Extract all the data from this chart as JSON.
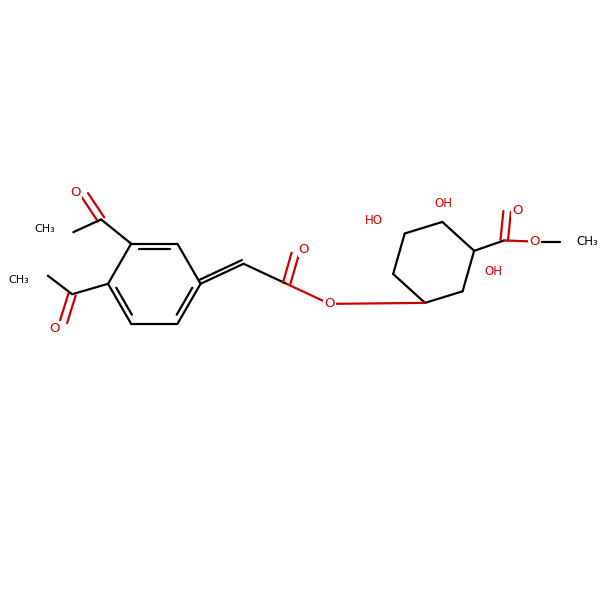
{
  "background_color": "#ffffff",
  "bond_color": "#000000",
  "oxygen_color": "#cc0000",
  "line_width": 1.6,
  "font_size": 8.5,
  "figsize": [
    6.0,
    6.0
  ],
  "dpi": 100,
  "xlim": [
    0,
    10
  ],
  "ylim": [
    0,
    10
  ]
}
